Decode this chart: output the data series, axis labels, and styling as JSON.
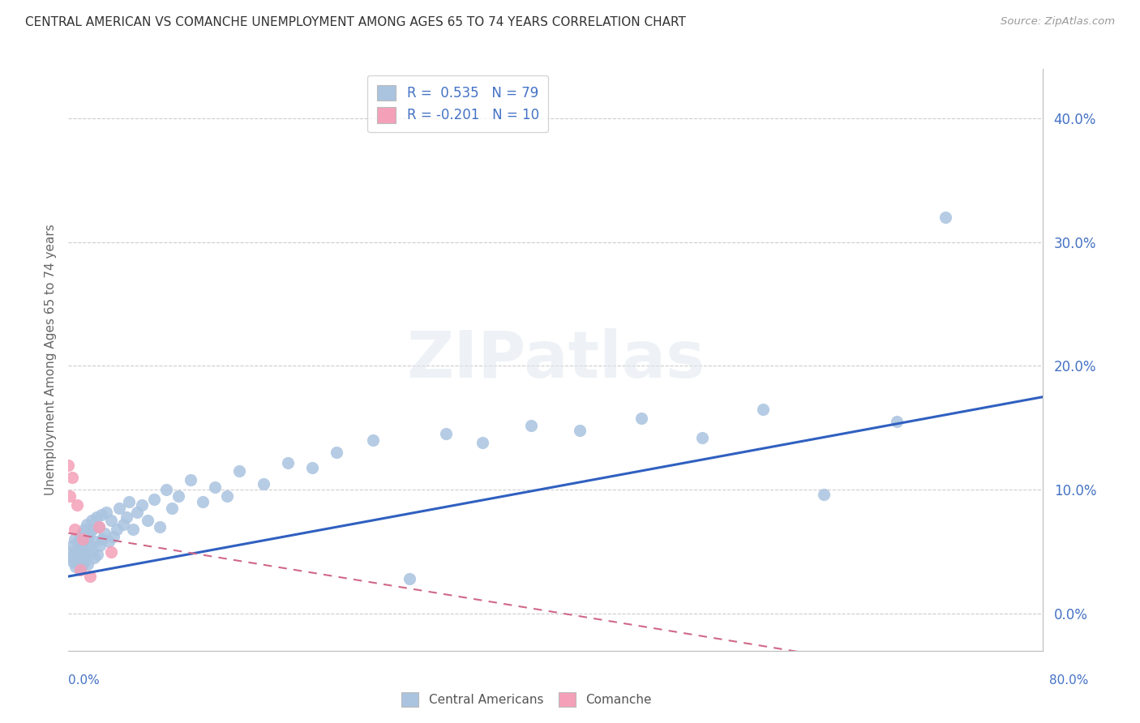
{
  "title": "CENTRAL AMERICAN VS COMANCHE UNEMPLOYMENT AMONG AGES 65 TO 74 YEARS CORRELATION CHART",
  "source": "Source: ZipAtlas.com",
  "ylabel": "Unemployment Among Ages 65 to 74 years",
  "ytick_labels": [
    "0.0%",
    "10.0%",
    "20.0%",
    "30.0%",
    "40.0%"
  ],
  "ytick_values": [
    0.0,
    0.1,
    0.2,
    0.3,
    0.4
  ],
  "xlim": [
    0.0,
    0.8
  ],
  "ylim": [
    -0.03,
    0.44
  ],
  "blue_color": "#aac4e0",
  "pink_color": "#f4a0b8",
  "blue_line_color": "#3060c0",
  "pink_line_color": "#d06888",
  "text_color": "#4472c4",
  "watermark_text": "ZIPatlas",
  "ca_scatter_x": [
    0.0,
    0.002,
    0.003,
    0.004,
    0.005,
    0.005,
    0.006,
    0.007,
    0.007,
    0.008,
    0.008,
    0.009,
    0.01,
    0.01,
    0.01,
    0.011,
    0.011,
    0.012,
    0.012,
    0.013,
    0.013,
    0.014,
    0.015,
    0.015,
    0.016,
    0.016,
    0.017,
    0.018,
    0.019,
    0.02,
    0.02,
    0.021,
    0.022,
    0.023,
    0.024,
    0.025,
    0.026,
    0.027,
    0.028,
    0.03,
    0.031,
    0.033,
    0.035,
    0.037,
    0.04,
    0.042,
    0.045,
    0.048,
    0.05,
    0.053,
    0.056,
    0.06,
    0.065,
    0.07,
    0.075,
    0.08,
    0.085,
    0.09,
    0.1,
    0.11,
    0.12,
    0.13,
    0.14,
    0.16,
    0.18,
    0.2,
    0.22,
    0.25,
    0.28,
    0.31,
    0.34,
    0.38,
    0.42,
    0.47,
    0.52,
    0.57,
    0.62,
    0.68,
    0.72
  ],
  "ca_scatter_y": [
    0.05,
    0.045,
    0.055,
    0.042,
    0.048,
    0.06,
    0.038,
    0.052,
    0.043,
    0.047,
    0.058,
    0.04,
    0.055,
    0.045,
    0.062,
    0.038,
    0.065,
    0.048,
    0.058,
    0.042,
    0.068,
    0.052,
    0.046,
    0.072,
    0.06,
    0.04,
    0.065,
    0.055,
    0.075,
    0.05,
    0.068,
    0.045,
    0.058,
    0.078,
    0.048,
    0.07,
    0.055,
    0.08,
    0.06,
    0.065,
    0.082,
    0.058,
    0.075,
    0.062,
    0.068,
    0.085,
    0.072,
    0.078,
    0.09,
    0.068,
    0.082,
    0.088,
    0.075,
    0.092,
    0.07,
    0.1,
    0.085,
    0.095,
    0.108,
    0.09,
    0.102,
    0.095,
    0.115,
    0.105,
    0.122,
    0.118,
    0.13,
    0.14,
    0.028,
    0.145,
    0.138,
    0.152,
    0.148,
    0.158,
    0.142,
    0.165,
    0.096,
    0.155,
    0.32
  ],
  "comanche_scatter_x": [
    0.0,
    0.001,
    0.003,
    0.005,
    0.007,
    0.01,
    0.012,
    0.018,
    0.025,
    0.035
  ],
  "comanche_scatter_y": [
    0.12,
    0.095,
    0.11,
    0.068,
    0.088,
    0.035,
    0.06,
    0.03,
    0.07,
    0.05
  ],
  "background_color": "#ffffff",
  "grid_color": "#cccccc"
}
